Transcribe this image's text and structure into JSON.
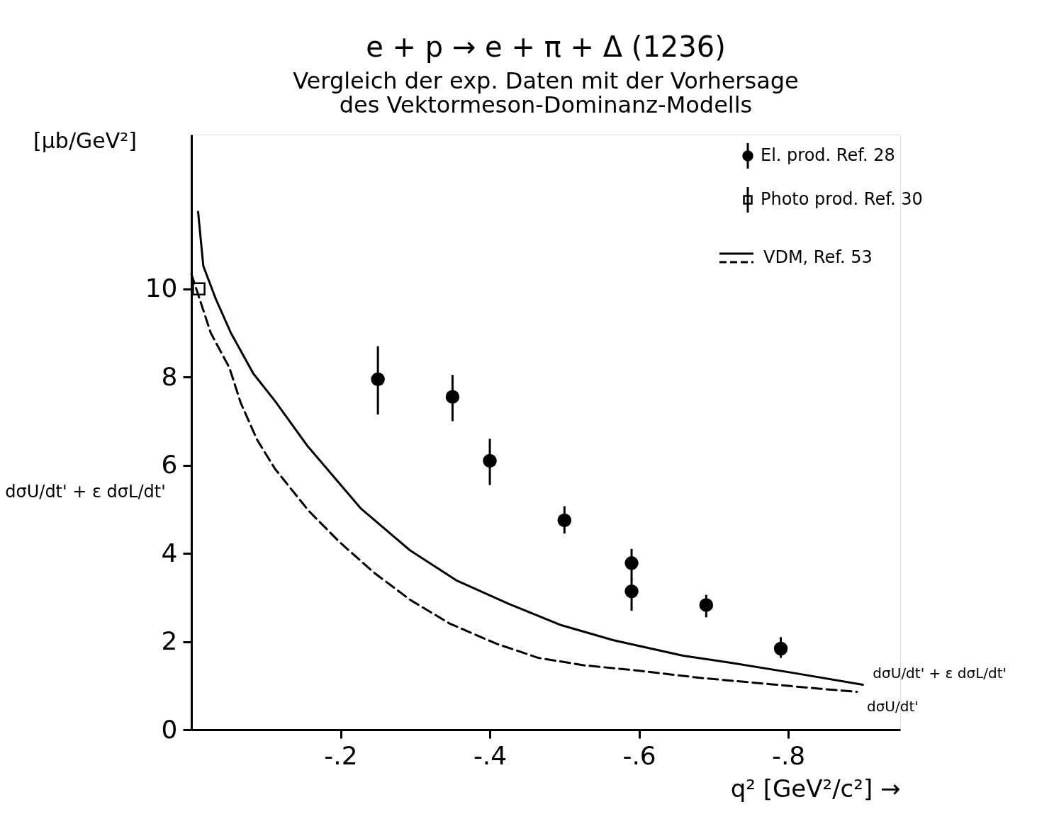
{
  "chart_data": {
    "type": "scatter",
    "title": "e + p → e + π + Δ (1236)",
    "subtitle": "Vergleich der exp. Daten mit der Vorhersage\ndes Vektormeson-Dominanz-Modells",
    "xlabel": "q² [GeV²/c²] →",
    "ylabel": "dσU/dt' + ε dσL/dt'",
    "annotations": [
      "[μb/GeV²]",
      "VDM, Ref.   53"
    ],
    "xlim": [
      0,
      -0.95
    ],
    "ylim": [
      0,
      13.5
    ],
    "xticks": [
      {
        "value": -0.2,
        "label": "-.2"
      },
      {
        "value": -0.4,
        "label": "-.4"
      },
      {
        "value": -0.6,
        "label": "-.6"
      },
      {
        "value": -0.8,
        "label": "-.8"
      }
    ],
    "yticks": [
      0,
      2,
      4,
      6,
      8,
      10
    ],
    "grid": false,
    "legend": "top right",
    "series": [
      {
        "name": "El. prod. Ref.   28",
        "marker": "circle",
        "color": "#000000",
        "x": [
          -0.25,
          -0.35,
          -0.4,
          -0.5,
          -0.59,
          -0.59,
          -0.69,
          -0.79
        ],
        "values": [
          7.95,
          7.55,
          6.1,
          4.75,
          3.78,
          3.14,
          2.83,
          1.84
        ],
        "errors": [
          [
            7.15,
            8.7
          ],
          [
            7.0,
            8.05
          ],
          [
            5.55,
            6.6
          ],
          [
            4.45,
            5.07
          ],
          [
            3.4,
            4.1
          ],
          [
            2.7,
            3.42
          ],
          [
            2.55,
            3.06
          ],
          [
            1.63,
            2.1
          ]
        ]
      },
      {
        "name": "Photo prod. Ref. 30",
        "marker": "square",
        "color": "#000000",
        "x": [
          -0.01
        ],
        "values": [
          10.0
        ]
      },
      {
        "name": "dσU/dt' + ε dσL/dt'",
        "type": "line",
        "line_style": "solid",
        "color": "#000000",
        "x": [
          -0.009,
          -0.016,
          -0.033,
          -0.053,
          -0.083,
          -0.112,
          -0.155,
          -0.227,
          -0.293,
          -0.356,
          -0.426,
          -0.496,
          -0.566,
          -0.659,
          -0.723,
          -0.81,
          -0.9
        ],
        "values": [
          11.75,
          10.52,
          9.76,
          9.0,
          8.08,
          7.46,
          6.45,
          5.02,
          4.07,
          3.38,
          2.85,
          2.37,
          2.03,
          1.68,
          1.52,
          1.28,
          1.02
        ]
      },
      {
        "name": "dσU/dt'",
        "type": "line",
        "line_style": "dashed",
        "color": "#000000",
        "x": [
          0,
          -0.026,
          -0.051,
          -0.066,
          -0.088,
          -0.112,
          -0.157,
          -0.199,
          -0.245,
          -0.293,
          -0.346,
          -0.409,
          -0.465,
          -0.527,
          -0.594,
          -0.68,
          -0.778,
          -0.843,
          -0.892
        ],
        "values": [
          10.34,
          9.0,
          8.21,
          7.42,
          6.58,
          5.92,
          4.97,
          4.25,
          3.56,
          2.95,
          2.41,
          1.95,
          1.63,
          1.46,
          1.35,
          1.18,
          1.03,
          0.93,
          0.86
        ]
      }
    ]
  }
}
